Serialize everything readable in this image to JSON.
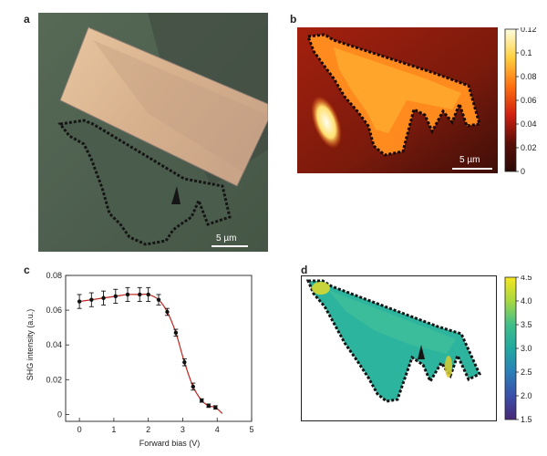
{
  "panels": {
    "a": {
      "letter": "a",
      "scale_bar": "5 µm"
    },
    "b": {
      "letter": "b",
      "scale_bar": "5 µm",
      "colorbar": {
        "ticks": [
          "0.12",
          "0.1",
          "0.08",
          "0.06",
          "0.04",
          "0.02",
          "0"
        ],
        "colors": [
          "#fffde0",
          "#ffd040",
          "#ff7010",
          "#d02010",
          "#5a0e08",
          "#2a0a06"
        ]
      }
    },
    "c": {
      "letter": "c"
    },
    "d": {
      "letter": "d",
      "colorbar": {
        "ticks": [
          "4.5",
          "4.0",
          "3.5",
          "3.0",
          "2.5",
          "2.0",
          "1.5"
        ],
        "colors": [
          "#f6e620",
          "#a7d840",
          "#40bf8a",
          "#22a8a0",
          "#2a7fb8",
          "#3a4fa8",
          "#482878"
        ]
      }
    }
  },
  "chart_data": {
    "type": "scatter",
    "title": "",
    "xlabel": "Forward bias (V)",
    "ylabel": "SHG intensity (a.u.)",
    "xlim": [
      -0.4,
      5
    ],
    "ylim": [
      -0.004,
      0.08
    ],
    "xticks": [
      "0",
      "1",
      "2",
      "3",
      "4",
      "5"
    ],
    "yticks": [
      "0",
      "0.02",
      "0.04",
      "0.06",
      "0.08"
    ],
    "series": [
      {
        "values_x": [
          0,
          0.35,
          0.7,
          1.05,
          1.4,
          1.75,
          2.0,
          2.3,
          2.55,
          2.8,
          3.05,
          3.3,
          3.55,
          3.75,
          3.95
        ],
        "values_y": [
          0.065,
          0.066,
          0.067,
          0.068,
          0.069,
          0.069,
          0.069,
          0.066,
          0.059,
          0.047,
          0.03,
          0.016,
          0.008,
          0.005,
          0.004
        ],
        "error": [
          0.004,
          0.004,
          0.004,
          0.004,
          0.004,
          0.004,
          0.004,
          0.003,
          0.002,
          0.002,
          0.002,
          0.002,
          0.001,
          0.001,
          0.001
        ],
        "color": "#111111"
      }
    ],
    "fit_color": "#c0241c",
    "grid": false
  }
}
